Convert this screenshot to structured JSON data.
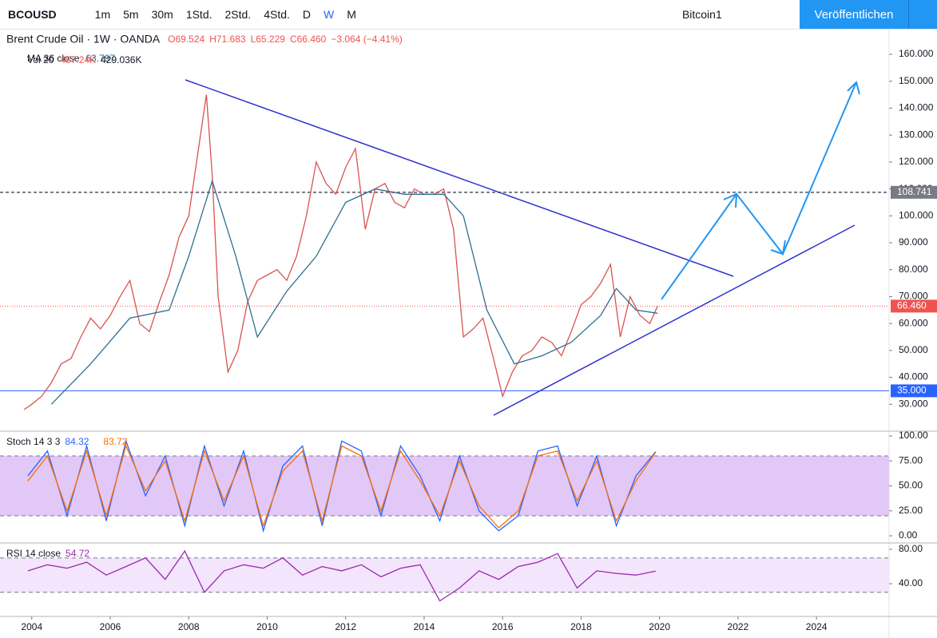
{
  "toolbar": {
    "symbol": "BCOUSD",
    "intervals": [
      "1m",
      "5m",
      "30m",
      "1Std.",
      "2Std.",
      "4Std.",
      "D",
      "W",
      "M"
    ],
    "layout": "Bitcoin1",
    "publish": "Veröffentlichen"
  },
  "chart_data": [
    {
      "type": "line",
      "title": "Brent Crude Oil · 1W · OANDA",
      "ohlc": [
        "O69.524",
        "H71.683",
        "L65.229",
        "C66.460",
        "−3.064 (−4.41%)"
      ],
      "volume_legend": {
        "name": "Vol 20",
        "values": [
          "457.24K",
          "429.036K"
        ]
      },
      "xlim": [
        2003.19,
        2025.85
      ],
      "xticks": [
        2004,
        2006,
        2008,
        2010,
        2012,
        2014,
        2016,
        2018,
        2020,
        2022,
        2024
      ],
      "ylim": [
        20,
        169.5
      ],
      "yticks": [
        {
          "value": 160,
          "label": "160.000"
        },
        {
          "value": 150,
          "label": "150.000"
        },
        {
          "value": 140,
          "label": "140.000"
        },
        {
          "value": 130,
          "label": "130.000"
        },
        {
          "value": 120,
          "label": "120.000"
        },
        {
          "value": 110,
          "label": "110.000"
        },
        {
          "value": 100,
          "label": "100.000"
        },
        {
          "value": 90,
          "label": "90.000"
        },
        {
          "value": 80,
          "label": "80.000"
        },
        {
          "value": 70,
          "label": "70.000"
        },
        {
          "value": 60,
          "label": "60.000"
        },
        {
          "value": 50,
          "label": "50.000"
        },
        {
          "value": 40,
          "label": "40.000"
        },
        {
          "value": 30,
          "label": "30.000"
        }
      ],
      "hlines": [
        {
          "value": 108.741,
          "label": "108.741",
          "color": "#787b86"
        },
        {
          "value": 66.46,
          "label": "66.460",
          "color": "#ef5350"
        },
        {
          "value": 35,
          "label": "35.000",
          "color": "#2962ff"
        }
      ],
      "series": [
        {
          "color": "#d9534f",
          "x": [
            2003.8,
            2004.0,
            2004.25,
            2004.5,
            2004.75,
            2005.0,
            2005.25,
            2005.5,
            2005.75,
            2006.0,
            2006.25,
            2006.5,
            2006.75,
            2007.0,
            2007.25,
            2007.5,
            2007.75,
            2008.0,
            2008.25,
            2008.45,
            2008.6,
            2008.75,
            2009.0,
            2009.25,
            2009.5,
            2009.75,
            2010.0,
            2010.25,
            2010.5,
            2010.75,
            2011.0,
            2011.25,
            2011.5,
            2011.75,
            2012.0,
            2012.25,
            2012.5,
            2012.75,
            2013.0,
            2013.25,
            2013.5,
            2013.75,
            2014.0,
            2014.25,
            2014.5,
            2014.75,
            2015.0,
            2015.25,
            2015.5,
            2015.75,
            2016.0,
            2016.25,
            2016.5,
            2016.75,
            2017.0,
            2017.25,
            2017.5,
            2017.75,
            2018.0,
            2018.25,
            2018.5,
            2018.75,
            2019.0,
            2019.25,
            2019.5,
            2019.75,
            2019.95
          ],
          "values": [
            28,
            30,
            33,
            38,
            45,
            47,
            55,
            62,
            58,
            63,
            70,
            76,
            60,
            57,
            68,
            78,
            92,
            100,
            125,
            145,
            115,
            70,
            42,
            50,
            68,
            76,
            78,
            80,
            76,
            85,
            100,
            120,
            112,
            108,
            118,
            125,
            95,
            110,
            112,
            105,
            103,
            110,
            108,
            108,
            110,
            95,
            55,
            58,
            62,
            48,
            33,
            42,
            48,
            50,
            55,
            53,
            48,
            57,
            67,
            70,
            75,
            82,
            55,
            70,
            63,
            60,
            66.46
          ]
        },
        {
          "name": "MA 36 close",
          "color": "#2e6f8e",
          "x": [
            2004.5,
            2005.5,
            2006.5,
            2007.5,
            2008.0,
            2008.6,
            2009.2,
            2009.75,
            2010.5,
            2011.25,
            2012.0,
            2012.75,
            2013.5,
            2014.5,
            2015.0,
            2015.6,
            2016.3,
            2017.0,
            2017.75,
            2018.5,
            2018.9,
            2019.4,
            2019.95
          ],
          "values": [
            30,
            45,
            62,
            65,
            85,
            113,
            85,
            55,
            72,
            85,
            105,
            110,
            108,
            108,
            100,
            65,
            45,
            48,
            53,
            63,
            73,
            65,
            63.797
          ]
        }
      ]
    },
    {
      "type": "line",
      "title": "Stoch 14 3 3",
      "xlim": [
        2003.19,
        2025.85
      ],
      "ylim": [
        -7.2,
        104.8
      ],
      "yticks": [
        {
          "value": 100,
          "label": "100.00"
        },
        {
          "value": 75,
          "label": "75.00"
        },
        {
          "value": 50,
          "label": "50.00"
        },
        {
          "value": 25,
          "label": "25.00"
        },
        {
          "value": 0,
          "label": "0.00"
        }
      ],
      "bands": [
        20,
        80
      ],
      "band_color": "#e1c8f7",
      "series": [
        {
          "color": "#2962ff",
          "x": [
            2003.9,
            2004.4,
            2004.9,
            2005.4,
            2005.9,
            2006.4,
            2006.9,
            2007.4,
            2007.9,
            2008.4,
            2008.9,
            2009.4,
            2009.9,
            2010.4,
            2010.9,
            2011.4,
            2011.9,
            2012.4,
            2012.9,
            2013.4,
            2013.9,
            2014.4,
            2014.9,
            2015.4,
            2015.9,
            2016.4,
            2016.9,
            2017.4,
            2017.9,
            2018.4,
            2018.9,
            2019.4,
            2019.9
          ],
          "values": [
            60,
            85,
            20,
            90,
            15,
            95,
            40,
            80,
            10,
            90,
            30,
            85,
            5,
            70,
            90,
            10,
            95,
            85,
            20,
            90,
            60,
            15,
            80,
            25,
            5,
            20,
            85,
            90,
            30,
            80,
            10,
            60,
            84.32
          ]
        },
        {
          "color": "#ff6d00",
          "x": [
            2003.9,
            2004.4,
            2004.9,
            2005.4,
            2005.9,
            2006.4,
            2006.9,
            2007.4,
            2007.9,
            2008.4,
            2008.9,
            2009.4,
            2009.9,
            2010.4,
            2010.9,
            2011.4,
            2011.9,
            2012.4,
            2012.9,
            2013.4,
            2013.9,
            2014.4,
            2014.9,
            2015.4,
            2015.9,
            2016.4,
            2016.9,
            2017.4,
            2017.9,
            2018.4,
            2018.9,
            2019.4,
            2019.9
          ],
          "values": [
            55,
            80,
            25,
            85,
            20,
            90,
            45,
            75,
            15,
            85,
            35,
            80,
            10,
            65,
            85,
            15,
            90,
            80,
            25,
            85,
            55,
            20,
            75,
            30,
            8,
            25,
            80,
            85,
            35,
            75,
            15,
            55,
            83.72
          ]
        }
      ]
    },
    {
      "type": "line",
      "title": "RSI 14 close",
      "xlim": [
        2003.19,
        2025.85
      ],
      "ylim": [
        1.9,
        87.4
      ],
      "yticks": [
        {
          "value": 80,
          "label": "80.00"
        },
        {
          "value": 40,
          "label": "40.00"
        }
      ],
      "bands": [
        30,
        70
      ],
      "band_color": "#f3e5fb",
      "series": [
        {
          "color": "#9c27b0",
          "x": [
            2003.9,
            2004.4,
            2004.9,
            2005.4,
            2005.9,
            2006.4,
            2006.9,
            2007.4,
            2007.9,
            2008.4,
            2008.9,
            2009.4,
            2009.9,
            2010.4,
            2010.9,
            2011.4,
            2011.9,
            2012.4,
            2012.9,
            2013.4,
            2013.9,
            2014.4,
            2014.9,
            2015.4,
            2015.9,
            2016.4,
            2016.9,
            2017.4,
            2017.9,
            2018.4,
            2018.9,
            2019.4,
            2019.9
          ],
          "values": [
            55,
            62,
            58,
            65,
            50,
            60,
            70,
            45,
            78,
            30,
            55,
            62,
            58,
            70,
            50,
            60,
            55,
            62,
            48,
            58,
            62,
            20,
            35,
            55,
            45,
            60,
            65,
            75,
            35,
            55,
            52,
            50,
            54.72
          ]
        }
      ]
    }
  ]
}
